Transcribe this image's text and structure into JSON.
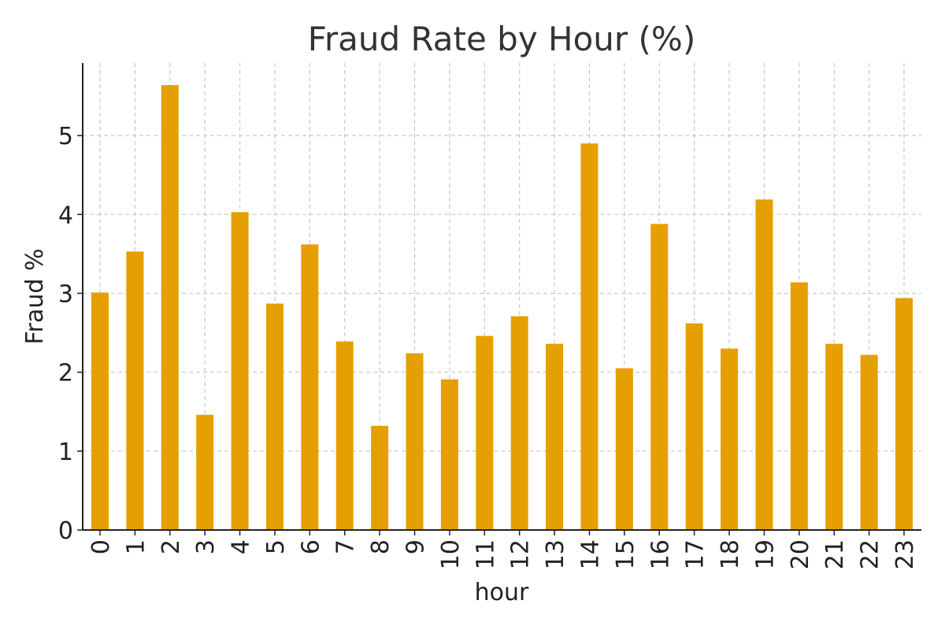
{
  "chart_data": {
    "type": "bar",
    "title": "Fraud Rate by Hour (%)",
    "xlabel": "hour",
    "ylabel": "Fraud %",
    "categories": [
      "0",
      "1",
      "2",
      "3",
      "4",
      "5",
      "6",
      "7",
      "8",
      "9",
      "10",
      "11",
      "12",
      "13",
      "14",
      "15",
      "16",
      "17",
      "18",
      "19",
      "20",
      "21",
      "22",
      "23"
    ],
    "values": [
      3.01,
      3.53,
      5.64,
      1.46,
      4.03,
      2.87,
      3.62,
      2.39,
      1.32,
      2.24,
      1.91,
      2.46,
      2.71,
      2.36,
      4.9,
      2.05,
      3.88,
      2.62,
      2.3,
      4.19,
      3.14,
      2.36,
      2.22,
      2.94
    ],
    "yticks": [
      "0",
      "1",
      "2",
      "3",
      "4",
      "5"
    ],
    "ylim": [
      0,
      5.92
    ],
    "grid": true,
    "bar_color": "#E69F00"
  }
}
